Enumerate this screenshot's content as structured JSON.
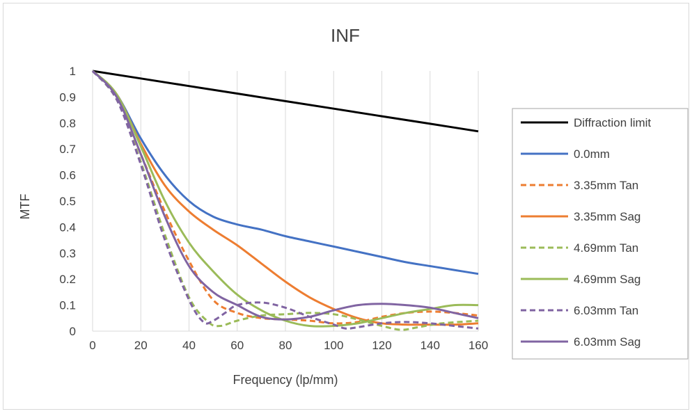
{
  "chart_data": {
    "type": "line",
    "title": "INF",
    "xlabel": "Frequency (lp/mm)",
    "ylabel": "MTF",
    "xlim": [
      0,
      160
    ],
    "ylim": [
      0,
      1
    ],
    "x_ticks": [
      0,
      20,
      40,
      60,
      80,
      100,
      120,
      140,
      160
    ],
    "x_tick_labels": [
      "0",
      "20",
      "40",
      "60",
      "80",
      "100",
      "120",
      "140",
      "160"
    ],
    "y_ticks": [
      0,
      0.1,
      0.2,
      0.3,
      0.4,
      0.5,
      0.6,
      0.7,
      0.8,
      0.9,
      1
    ],
    "y_tick_labels": [
      "0",
      "0.1",
      "0.2",
      "0.3",
      "0.4",
      "0.5",
      "0.6",
      "0.7",
      "0.8",
      "0.9",
      "1"
    ],
    "grid": "vertical",
    "legend_position": "right",
    "series": [
      {
        "name": "Diffraction limit",
        "color": "#000000",
        "dash": "solid",
        "points": [
          [
            0,
            1
          ],
          [
            20,
            0.971
          ],
          [
            40,
            0.942
          ],
          [
            60,
            0.913
          ],
          [
            80,
            0.884
          ],
          [
            100,
            0.855
          ],
          [
            120,
            0.826
          ],
          [
            140,
            0.797
          ],
          [
            160,
            0.768
          ]
        ]
      },
      {
        "name": "0.0mm",
        "color": "#4472C4",
        "dash": "solid",
        "points": [
          [
            0,
            1
          ],
          [
            10,
            0.91
          ],
          [
            20,
            0.74
          ],
          [
            30,
            0.6
          ],
          [
            40,
            0.5
          ],
          [
            50,
            0.44
          ],
          [
            60,
            0.41
          ],
          [
            70,
            0.39
          ],
          [
            80,
            0.365
          ],
          [
            90,
            0.345
          ],
          [
            100,
            0.325
          ],
          [
            110,
            0.305
          ],
          [
            120,
            0.285
          ],
          [
            130,
            0.265
          ],
          [
            140,
            0.25
          ],
          [
            150,
            0.235
          ],
          [
            160,
            0.22
          ]
        ]
      },
      {
        "name": "3.35mm Tan",
        "color": "#ED7D31",
        "dash": "dashed",
        "points": [
          [
            0,
            1
          ],
          [
            10,
            0.9
          ],
          [
            20,
            0.68
          ],
          [
            30,
            0.46
          ],
          [
            40,
            0.27
          ],
          [
            50,
            0.12
          ],
          [
            60,
            0.07
          ],
          [
            70,
            0.05
          ],
          [
            80,
            0.045
          ],
          [
            90,
            0.04
          ],
          [
            100,
            0.03
          ],
          [
            110,
            0.035
          ],
          [
            120,
            0.055
          ],
          [
            130,
            0.07
          ],
          [
            140,
            0.075
          ],
          [
            150,
            0.07
          ],
          [
            160,
            0.06
          ]
        ]
      },
      {
        "name": "3.35mm Sag",
        "color": "#ED7D31",
        "dash": "solid",
        "points": [
          [
            0,
            1
          ],
          [
            10,
            0.91
          ],
          [
            20,
            0.72
          ],
          [
            30,
            0.56
          ],
          [
            40,
            0.46
          ],
          [
            50,
            0.39
          ],
          [
            60,
            0.33
          ],
          [
            70,
            0.26
          ],
          [
            80,
            0.19
          ],
          [
            90,
            0.13
          ],
          [
            100,
            0.085
          ],
          [
            110,
            0.05
          ],
          [
            120,
            0.03
          ],
          [
            130,
            0.025
          ],
          [
            140,
            0.025
          ],
          [
            150,
            0.025
          ],
          [
            160,
            0.03
          ]
        ]
      },
      {
        "name": "4.69mm Tan",
        "color": "#9BBB59",
        "dash": "dashed",
        "points": [
          [
            0,
            1
          ],
          [
            10,
            0.89
          ],
          [
            20,
            0.65
          ],
          [
            30,
            0.37
          ],
          [
            40,
            0.13
          ],
          [
            48,
            0.035
          ],
          [
            53,
            0.02
          ],
          [
            60,
            0.04
          ],
          [
            70,
            0.06
          ],
          [
            80,
            0.065
          ],
          [
            90,
            0.07
          ],
          [
            100,
            0.065
          ],
          [
            110,
            0.045
          ],
          [
            120,
            0.02
          ],
          [
            128,
            0.005
          ],
          [
            135,
            0.015
          ],
          [
            145,
            0.03
          ],
          [
            160,
            0.04
          ]
        ]
      },
      {
        "name": "4.69mm Sag",
        "color": "#9BBB59",
        "dash": "solid",
        "points": [
          [
            0,
            1
          ],
          [
            10,
            0.91
          ],
          [
            20,
            0.71
          ],
          [
            30,
            0.5
          ],
          [
            40,
            0.34
          ],
          [
            50,
            0.23
          ],
          [
            60,
            0.14
          ],
          [
            70,
            0.08
          ],
          [
            80,
            0.04
          ],
          [
            90,
            0.02
          ],
          [
            100,
            0.02
          ],
          [
            110,
            0.03
          ],
          [
            120,
            0.05
          ],
          [
            130,
            0.07
          ],
          [
            140,
            0.085
          ],
          [
            150,
            0.1
          ],
          [
            160,
            0.1
          ]
        ]
      },
      {
        "name": "6.03mm Tan",
        "color": "#8064A2",
        "dash": "dashed",
        "points": [
          [
            0,
            1
          ],
          [
            10,
            0.89
          ],
          [
            20,
            0.64
          ],
          [
            30,
            0.35
          ],
          [
            40,
            0.12
          ],
          [
            46,
            0.035
          ],
          [
            50,
            0.04
          ],
          [
            55,
            0.07
          ],
          [
            60,
            0.1
          ],
          [
            70,
            0.11
          ],
          [
            80,
            0.09
          ],
          [
            90,
            0.055
          ],
          [
            100,
            0.025
          ],
          [
            105,
            0.01
          ],
          [
            110,
            0.015
          ],
          [
            120,
            0.03
          ],
          [
            130,
            0.035
          ],
          [
            140,
            0.03
          ],
          [
            150,
            0.02
          ],
          [
            160,
            0.01
          ]
        ]
      },
      {
        "name": "6.03mm Sag",
        "color": "#8064A2",
        "dash": "solid",
        "points": [
          [
            0,
            1
          ],
          [
            10,
            0.9
          ],
          [
            20,
            0.68
          ],
          [
            30,
            0.44
          ],
          [
            40,
            0.25
          ],
          [
            50,
            0.15
          ],
          [
            60,
            0.1
          ],
          [
            70,
            0.055
          ],
          [
            80,
            0.045
          ],
          [
            90,
            0.055
          ],
          [
            100,
            0.08
          ],
          [
            110,
            0.1
          ],
          [
            120,
            0.105
          ],
          [
            130,
            0.1
          ],
          [
            140,
            0.09
          ],
          [
            150,
            0.07
          ],
          [
            160,
            0.05
          ]
        ]
      }
    ]
  }
}
